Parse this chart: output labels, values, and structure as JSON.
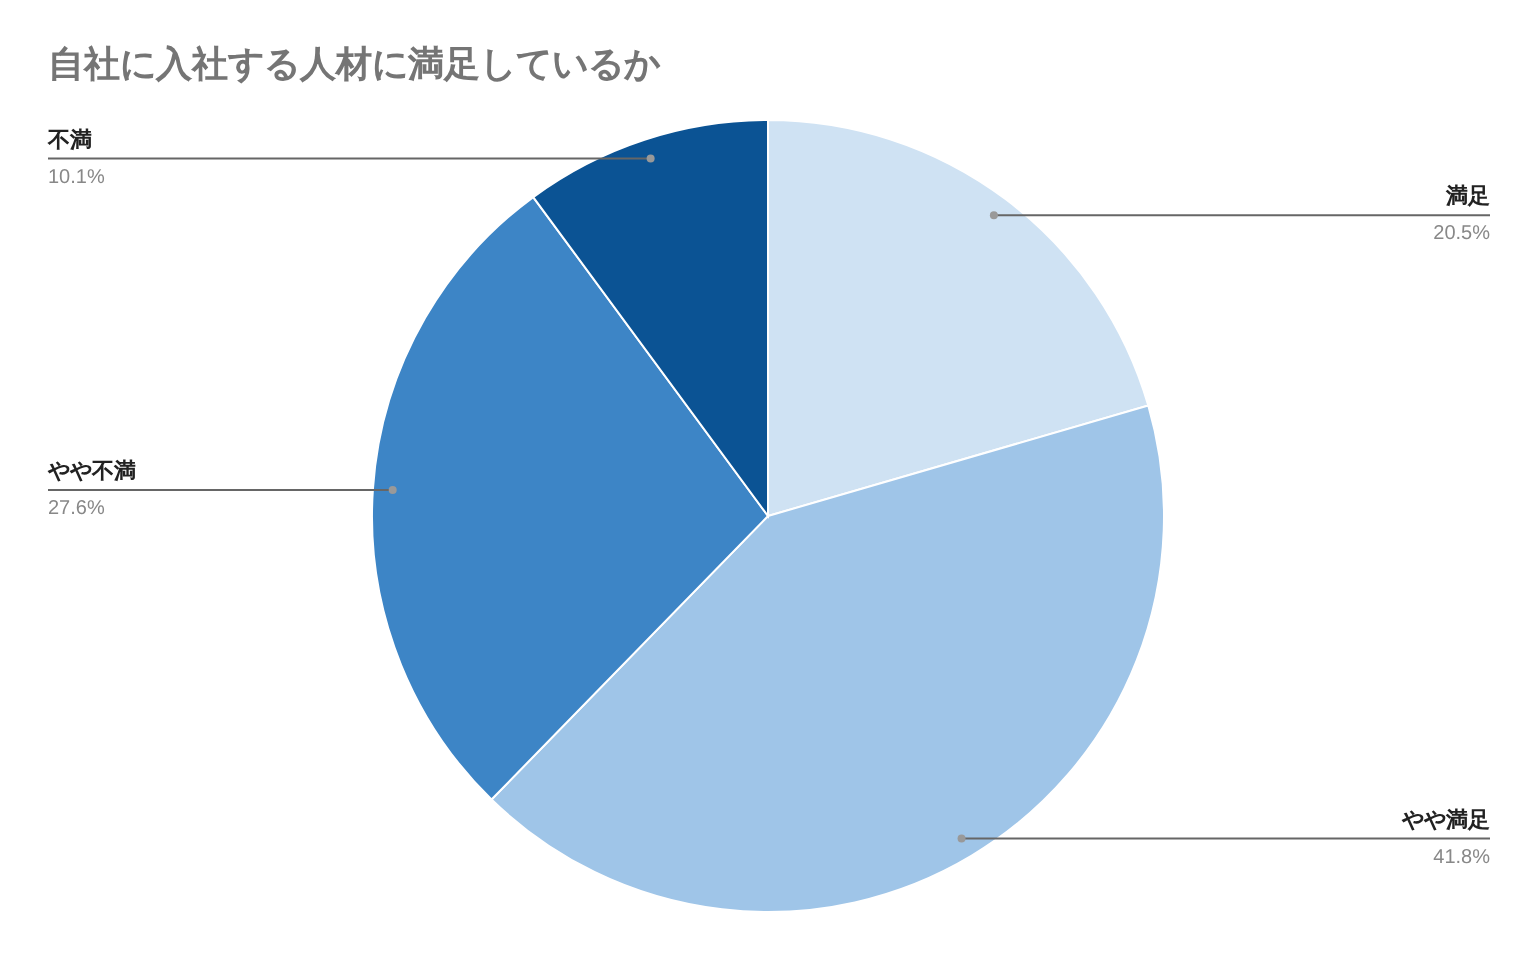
{
  "chart_data": {
    "type": "pie",
    "title": "自社に入社する人材に満足しているか",
    "categories": [
      "満足",
      "やや満足",
      "やや不満",
      "不満"
    ],
    "values": [
      20.5,
      41.8,
      27.6,
      10.1
    ],
    "colors": [
      "#cfe2f3",
      "#9fc5e8",
      "#3d85c6",
      "#0b5394"
    ],
    "value_labels": [
      "20.5%",
      "41.8%",
      "27.6%",
      "10.1%"
    ],
    "legend": false
  }
}
